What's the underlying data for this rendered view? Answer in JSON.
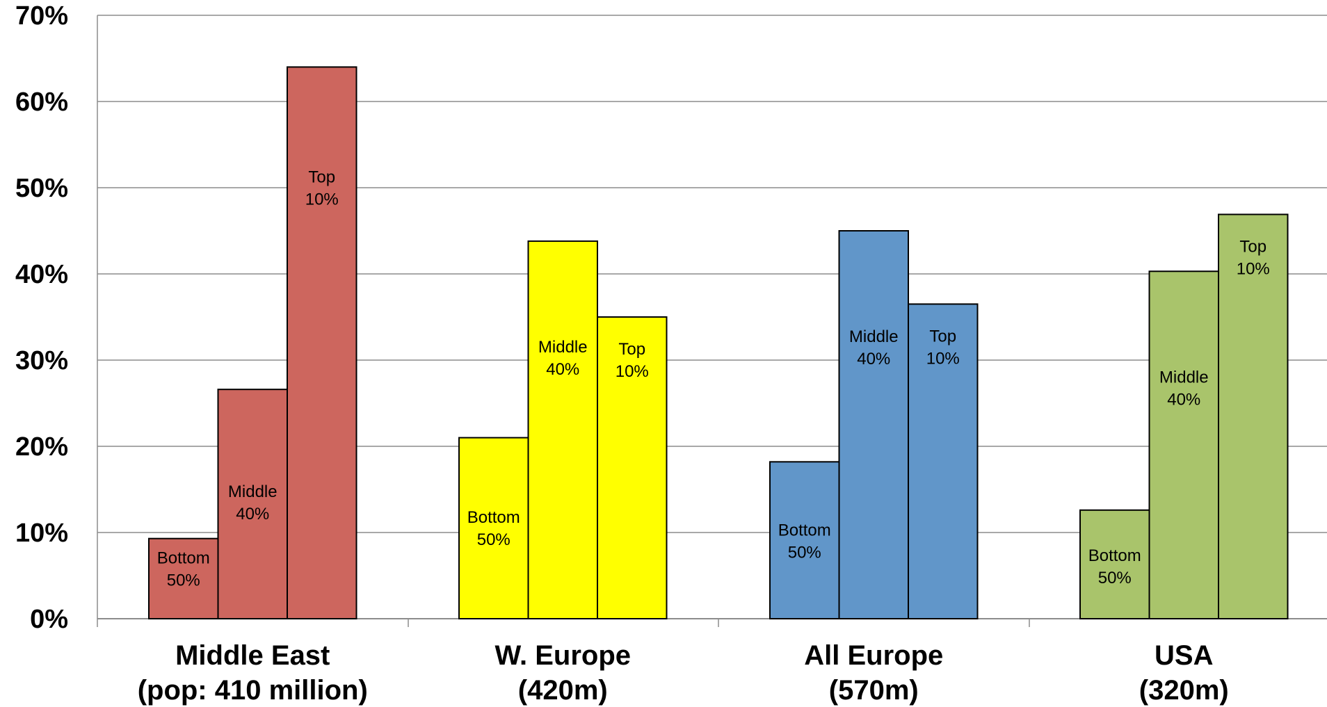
{
  "chart_data": {
    "type": "bar",
    "title": "",
    "xlabel": "",
    "ylabel": "",
    "ylim": [
      0,
      70
    ],
    "y_tick_labels": [
      "0%",
      "10%",
      "20%",
      "30%",
      "40%",
      "50%",
      "60%",
      "70%"
    ],
    "y_ticks": [
      0,
      10,
      20,
      30,
      40,
      50,
      60,
      70
    ],
    "grid": true,
    "legend": "none",
    "categories": [
      {
        "line1": "Middle East",
        "line2": "(pop: 410 million)"
      },
      {
        "line1": "W. Europe",
        "line2": "(420m)"
      },
      {
        "line1": "All Europe",
        "line2": "(570m)"
      },
      {
        "line1": "USA",
        "line2": "(320m)"
      }
    ],
    "series": [
      {
        "label_line1": "Bottom",
        "label_line2": "50%",
        "values": [
          9.3,
          21.0,
          18.2,
          12.6
        ]
      },
      {
        "label_line1": "Middle",
        "label_line2": "40%",
        "values": [
          26.6,
          43.8,
          45.0,
          40.3
        ]
      },
      {
        "label_line1": "Top",
        "label_line2": "10%",
        "values": [
          64.0,
          35.0,
          36.5,
          46.9
        ]
      }
    ],
    "group_colors": [
      "#CD665E",
      "#FFFF00",
      "#6196C9",
      "#A9C46B"
    ]
  }
}
